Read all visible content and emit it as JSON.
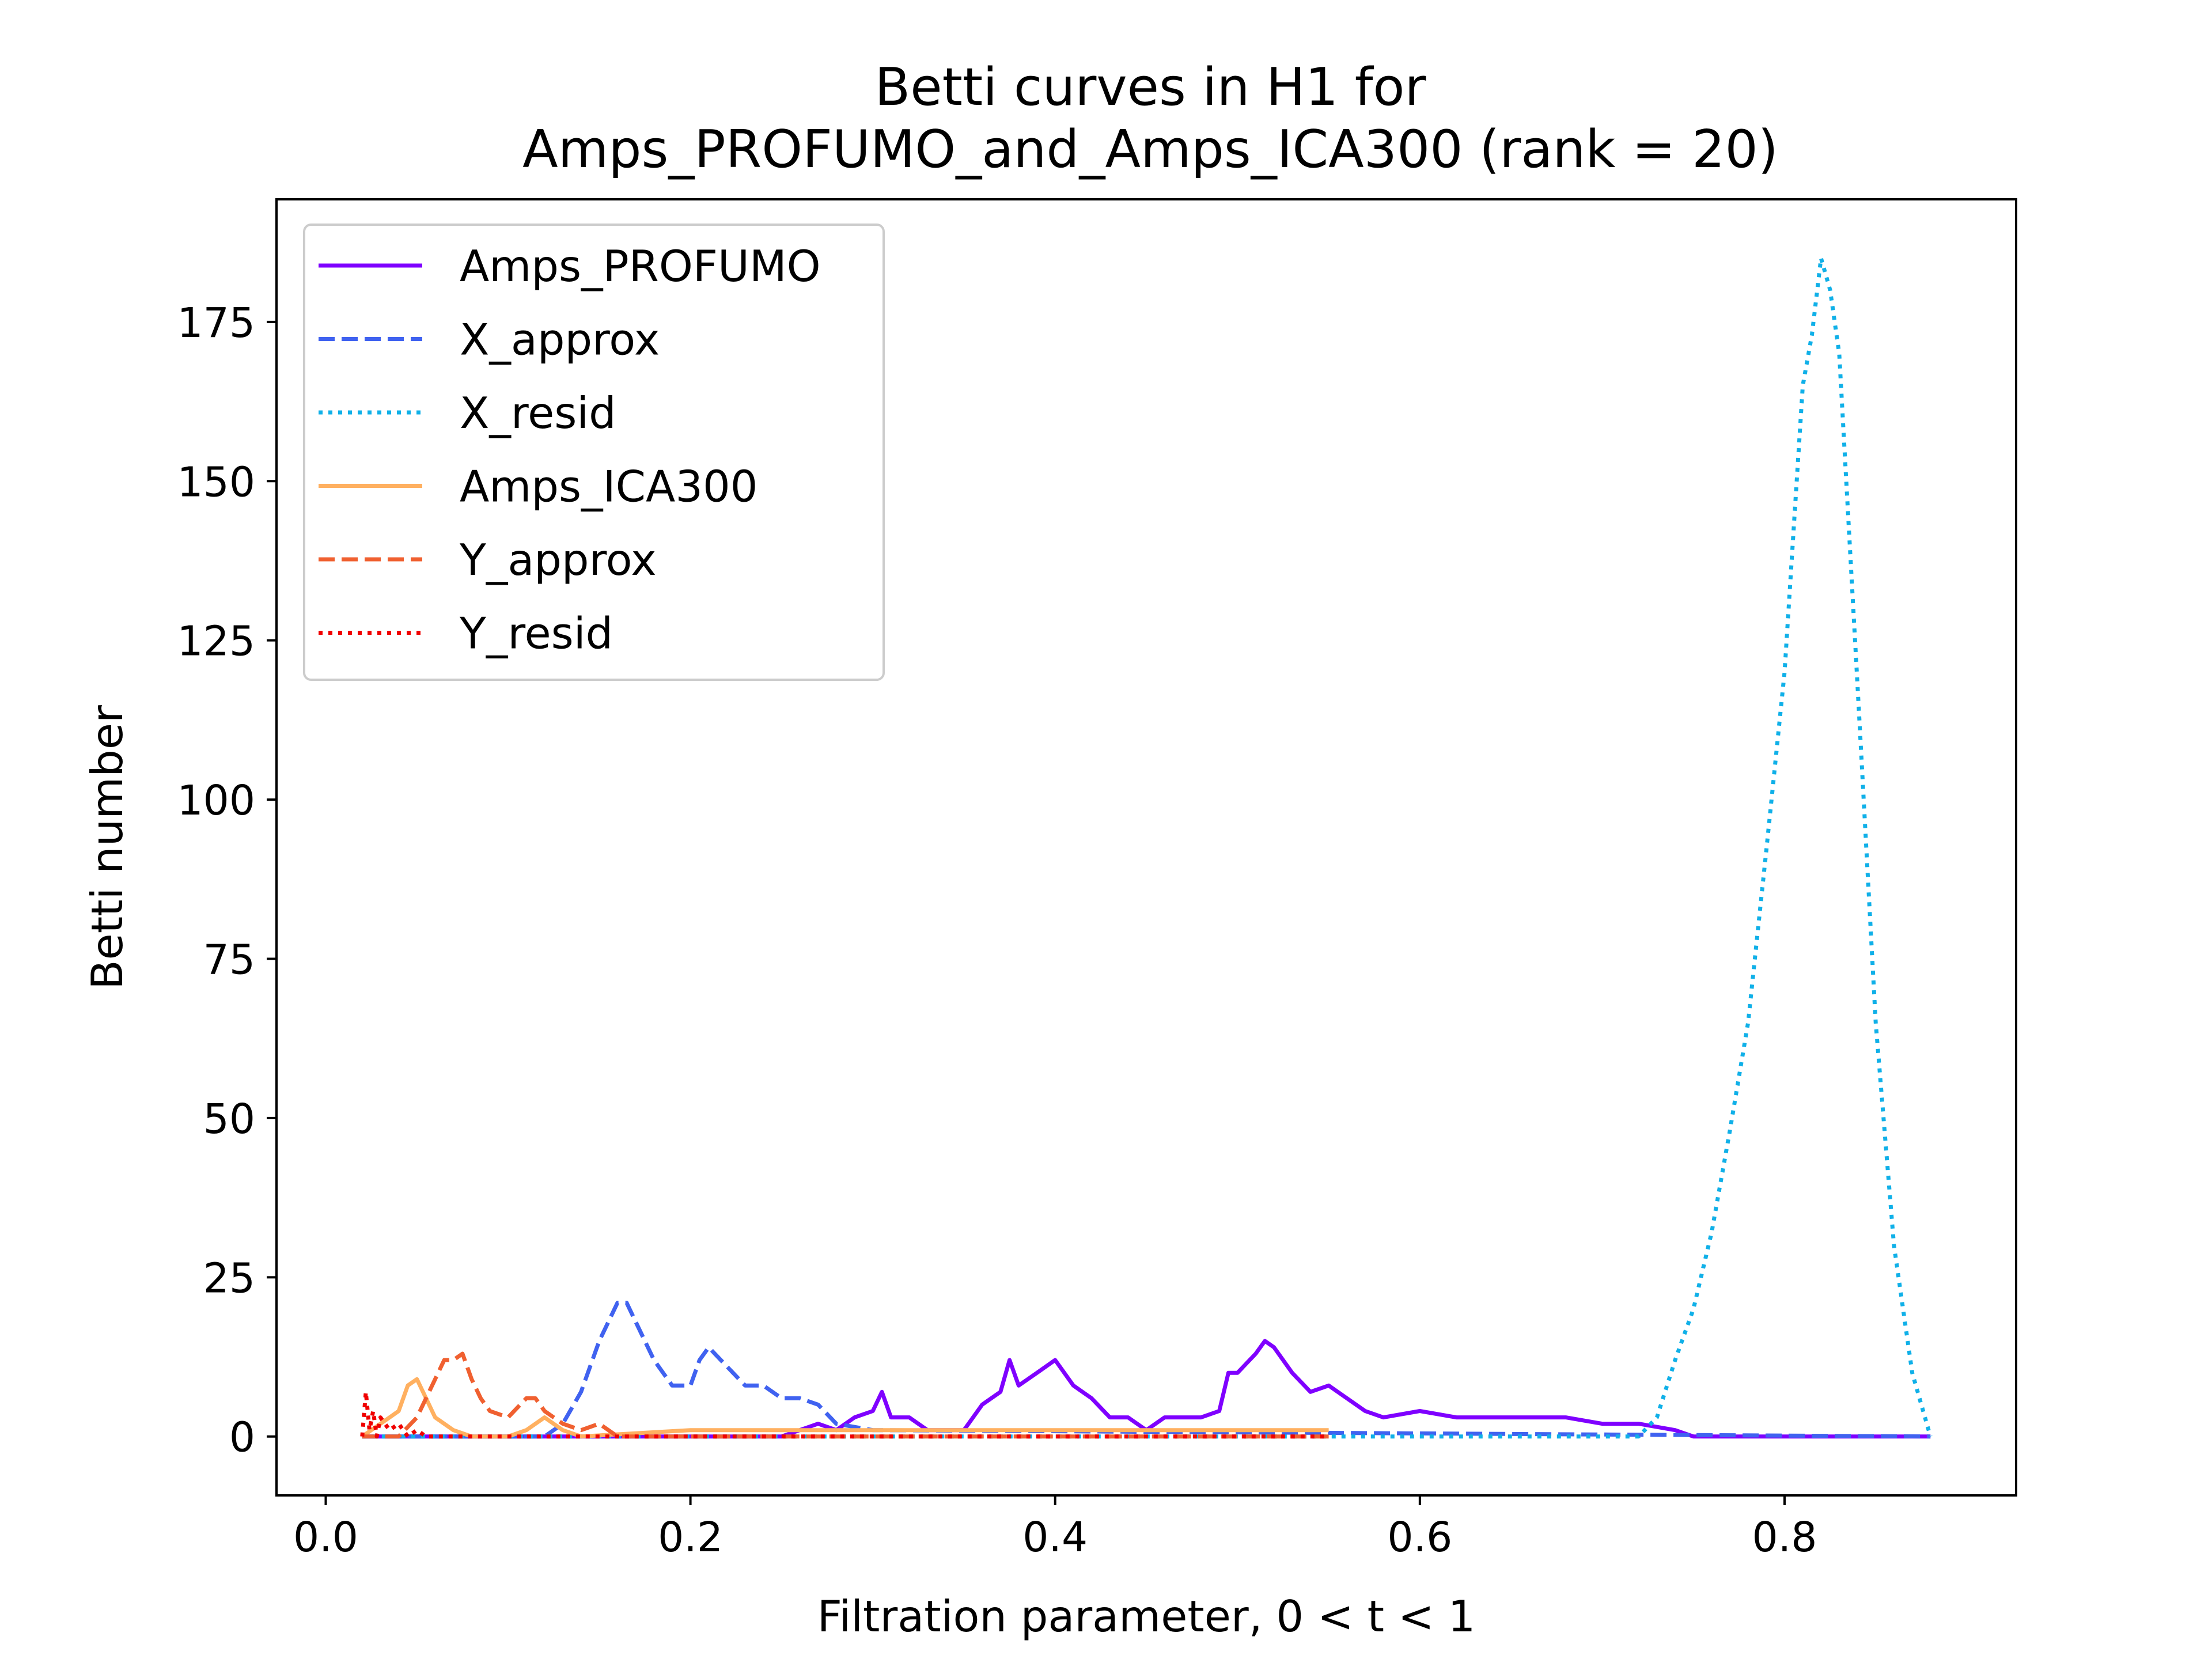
{
  "chart_data": {
    "type": "line",
    "title_line1": "Betti curves in H1 for",
    "title_line2": "Amps_PROFUMO_and_Amps_ICA300 (rank = 20)",
    "xlabel": "Filtration parameter, 0 < t < 1",
    "ylabel": "Betti number",
    "xlim": [
      -0.027,
      0.927
    ],
    "ylim": [
      -9.25,
      194.25
    ],
    "xticks": [
      0.0,
      0.2,
      0.4,
      0.6,
      0.8
    ],
    "xtick_labels": [
      "0.0",
      "0.2",
      "0.4",
      "0.6",
      "0.8"
    ],
    "yticks": [
      0,
      25,
      50,
      75,
      100,
      125,
      150,
      175
    ],
    "ytick_labels": [
      "0",
      "25",
      "50",
      "75",
      "100",
      "125",
      "150",
      "175"
    ],
    "grid": false,
    "legend_position": "top-left",
    "series": [
      {
        "name": "Amps_PROFUMO",
        "color": "#7f00ff",
        "style": "solid",
        "x": [
          0.02,
          0.25,
          0.27,
          0.28,
          0.29,
          0.3,
          0.305,
          0.31,
          0.32,
          0.33,
          0.34,
          0.35,
          0.36,
          0.37,
          0.375,
          0.38,
          0.39,
          0.4,
          0.41,
          0.42,
          0.43,
          0.44,
          0.45,
          0.46,
          0.47,
          0.48,
          0.49,
          0.495,
          0.5,
          0.51,
          0.515,
          0.52,
          0.53,
          0.54,
          0.55,
          0.56,
          0.57,
          0.58,
          0.6,
          0.62,
          0.65,
          0.68,
          0.7,
          0.72,
          0.74,
          0.75,
          0.88
        ],
        "y": [
          0,
          0,
          2,
          1,
          3,
          4,
          7,
          3,
          3,
          1,
          1,
          1,
          5,
          7,
          12,
          8,
          10,
          12,
          8,
          6,
          3,
          3,
          1,
          3,
          3,
          3,
          4,
          10,
          10,
          13,
          15,
          14,
          10,
          7,
          8,
          6,
          4,
          3,
          4,
          3,
          3,
          3,
          2,
          2,
          1,
          0,
          0
        ]
      },
      {
        "name": "X_approx",
        "color": "#4062f0",
        "style": "dashed",
        "x": [
          0.02,
          0.12,
          0.13,
          0.14,
          0.15,
          0.16,
          0.165,
          0.17,
          0.18,
          0.19,
          0.2,
          0.205,
          0.21,
          0.22,
          0.23,
          0.24,
          0.25,
          0.26,
          0.27,
          0.28,
          0.3,
          0.88
        ],
        "y": [
          0,
          0,
          2,
          7,
          15,
          21,
          21,
          18,
          12,
          8,
          8,
          12,
          14,
          11,
          8,
          8,
          6,
          6,
          5,
          2,
          1,
          0
        ]
      },
      {
        "name": "X_resid",
        "color": "#10b0e8",
        "style": "dotted",
        "x": [
          0.02,
          0.72,
          0.73,
          0.74,
          0.75,
          0.76,
          0.77,
          0.78,
          0.79,
          0.8,
          0.81,
          0.815,
          0.82,
          0.825,
          0.83,
          0.84,
          0.85,
          0.86,
          0.87,
          0.88
        ],
        "y": [
          0,
          0,
          3,
          12,
          20,
          32,
          48,
          65,
          92,
          120,
          165,
          173,
          185,
          180,
          170,
          118,
          65,
          30,
          10,
          0
        ]
      },
      {
        "name": "Amps_ICA300",
        "color": "#ffb060",
        "style": "solid",
        "x": [
          0.02,
          0.03,
          0.035,
          0.04,
          0.045,
          0.05,
          0.055,
          0.06,
          0.07,
          0.08,
          0.1,
          0.11,
          0.12,
          0.13,
          0.14,
          0.2,
          0.25,
          0.3,
          0.55
        ],
        "y": [
          0,
          2,
          3,
          4,
          8,
          9,
          6,
          3,
          1,
          0,
          0,
          1,
          3,
          1,
          0,
          1,
          1,
          1,
          1
        ]
      },
      {
        "name": "Y_approx",
        "color": "#f06030",
        "style": "dashed",
        "x": [
          0.02,
          0.04,
          0.05,
          0.06,
          0.065,
          0.07,
          0.075,
          0.08,
          0.085,
          0.09,
          0.1,
          0.11,
          0.115,
          0.12,
          0.13,
          0.14,
          0.15,
          0.16,
          0.55
        ],
        "y": [
          0,
          0,
          3,
          9,
          12,
          12,
          13,
          9,
          6,
          4,
          3,
          6,
          6,
          4,
          2,
          1,
          2,
          0,
          0
        ]
      },
      {
        "name": "Y_resid",
        "color": "#f00000",
        "style": "dotted",
        "x": [
          0.02,
          0.022,
          0.024,
          0.026,
          0.028,
          0.03,
          0.035,
          0.04,
          0.045,
          0.05,
          0.055,
          0.55
        ],
        "y": [
          0,
          7,
          1,
          4,
          0,
          3,
          1,
          2,
          0,
          1,
          0,
          0
        ]
      }
    ]
  }
}
